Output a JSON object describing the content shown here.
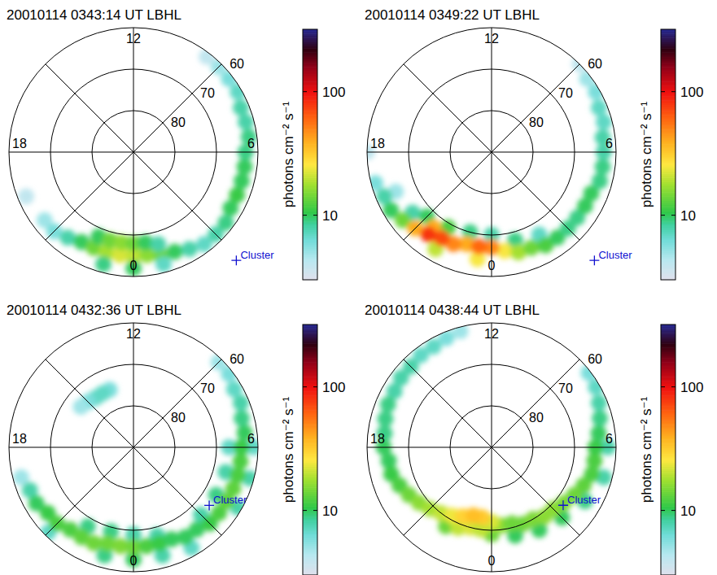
{
  "chart_data": [
    {
      "type": "polar_heatmap",
      "title": "20010114 0343:14 UT LBHL",
      "xlim": [
        0,
        24
      ],
      "xticks": [
        0,
        6,
        12,
        18
      ],
      "ylim": [
        90,
        60
      ],
      "yticks": [
        80,
        70,
        60
      ],
      "grid": true,
      "color_range": [
        3,
        320
      ],
      "color_ticks": [
        10,
        100
      ],
      "color_label": "photons cm⁻² s⁻¹",
      "log": true,
      "annotations": [
        {
          "text": "Cluster",
          "x": 2.9,
          "y": 54
        }
      ],
      "cells": [
        [
          19.5,
          62,
          4
        ],
        [
          20.5,
          63,
          5
        ],
        [
          21,
          63,
          6
        ],
        [
          21.5,
          64,
          8
        ],
        [
          22,
          65,
          10
        ],
        [
          22.5,
          65,
          14
        ],
        [
          23,
          65,
          18
        ],
        [
          23.5,
          65,
          22
        ],
        [
          0,
          65,
          20
        ],
        [
          0.5,
          65,
          16
        ],
        [
          1,
          64,
          14
        ],
        [
          1.5,
          64,
          10
        ],
        [
          2,
          63,
          8
        ],
        [
          22.5,
          68,
          10
        ],
        [
          23,
          68,
          14
        ],
        [
          23.5,
          68,
          16
        ],
        [
          0,
          68,
          14
        ],
        [
          0.5,
          68,
          10
        ],
        [
          1,
          67,
          8
        ],
        [
          23,
          62,
          9
        ],
        [
          0,
          62,
          10
        ],
        [
          1,
          62,
          7
        ],
        [
          2.5,
          62,
          7
        ],
        [
          3,
          62,
          8
        ],
        [
          3.5,
          62,
          9
        ],
        [
          4,
          63,
          10
        ],
        [
          4.5,
          63,
          11
        ],
        [
          5,
          63,
          10
        ],
        [
          5.5,
          63,
          10
        ],
        [
          6,
          63,
          9
        ],
        [
          6.5,
          62,
          9
        ],
        [
          7,
          62,
          8
        ],
        [
          7.5,
          62,
          8
        ],
        [
          8,
          61,
          7
        ],
        [
          8.5,
          61,
          6
        ],
        [
          9,
          61,
          5
        ],
        [
          9.5,
          61,
          4
        ]
      ]
    },
    {
      "type": "polar_heatmap",
      "title": "20010114 0349:22 UT LBHL",
      "xlim": [
        0,
        24
      ],
      "xticks": [
        0,
        6,
        12,
        18
      ],
      "ylim": [
        90,
        60
      ],
      "yticks": [
        80,
        70,
        60
      ],
      "grid": true,
      "color_range": [
        3,
        320
      ],
      "color_ticks": [
        10,
        100
      ],
      "color_label": "photons cm⁻² s⁻¹",
      "log": true,
      "annotations": [
        {
          "text": "Cluster",
          "x": 2.9,
          "y": 54
        }
      ],
      "cells": [
        [
          18,
          60,
          4
        ],
        [
          19.5,
          65,
          5
        ],
        [
          19,
          61,
          6
        ],
        [
          19.5,
          62,
          8
        ],
        [
          20,
          62,
          10
        ],
        [
          20.5,
          66,
          8
        ],
        [
          21,
          68,
          10
        ],
        [
          22,
          69,
          12
        ],
        [
          23,
          70,
          9
        ],
        [
          0,
          70,
          8
        ],
        [
          1,
          68,
          9
        ],
        [
          2,
          67,
          7
        ],
        [
          20.5,
          63,
          14
        ],
        [
          22,
          63,
          20
        ],
        [
          23.5,
          64,
          25
        ],
        [
          0.5,
          66,
          25
        ],
        [
          1,
          65,
          18
        ],
        [
          1.5,
          65,
          14
        ],
        [
          2,
          64,
          12
        ],
        [
          2.5,
          64,
          10
        ],
        [
          3,
          64,
          9
        ],
        [
          3.5,
          64,
          9
        ],
        [
          4,
          64,
          10
        ],
        [
          4.5,
          64,
          10
        ],
        [
          5,
          63,
          9
        ],
        [
          5.5,
          63,
          9
        ],
        [
          6,
          63,
          8
        ],
        [
          6.5,
          63,
          8
        ],
        [
          7,
          62,
          7
        ],
        [
          7.5,
          62,
          7
        ],
        [
          8,
          61,
          6
        ],
        [
          8.5,
          61,
          5
        ],
        [
          9,
          60,
          4
        ],
        [
          21,
          64,
          40
        ],
        [
          21.5,
          67,
          40
        ],
        [
          23,
          67,
          40
        ],
        [
          22.5,
          66,
          50
        ],
        [
          0,
          67,
          50
        ],
        [
          23.5,
          67,
          60
        ],
        [
          22,
          66,
          70
        ],
        [
          21.5,
          65,
          80
        ]
      ]
    },
    {
      "type": "polar_heatmap",
      "title": "20010114 0432:36 UT LBHL",
      "xlim": [
        0,
        24
      ],
      "xticks": [
        0,
        6,
        12,
        18
      ],
      "ylim": [
        90,
        60
      ],
      "yticks": [
        80,
        70,
        60
      ],
      "grid": true,
      "color_range": [
        3,
        320
      ],
      "color_ticks": [
        10,
        100
      ],
      "color_label": "photons cm⁻² s⁻¹",
      "log": true,
      "annotations": [
        {
          "text": "Cluster",
          "x": 3.5,
          "y": 67
        }
      ],
      "cells": [
        [
          13.5,
          75,
          6
        ],
        [
          14,
          75,
          7
        ],
        [
          14.5,
          75,
          7
        ],
        [
          15,
          74.5,
          6
        ],
        [
          15.5,
          74,
          5
        ],
        [
          22,
          68,
          9
        ],
        [
          23,
          69,
          9
        ],
        [
          0,
          69,
          8
        ],
        [
          1,
          68,
          8
        ],
        [
          3,
          67,
          8
        ],
        [
          4,
          67,
          9
        ],
        [
          5,
          67,
          8
        ],
        [
          6,
          67,
          7
        ],
        [
          23,
          63,
          9
        ],
        [
          0,
          63,
          10
        ],
        [
          1,
          63,
          8
        ],
        [
          4,
          61,
          8
        ],
        [
          5,
          61,
          8
        ],
        [
          6,
          61,
          7
        ],
        [
          21,
          61,
          7
        ],
        [
          2,
          62,
          7
        ],
        [
          19,
          62,
          5
        ],
        [
          19.5,
          63,
          8
        ],
        [
          20,
          63,
          10
        ],
        [
          20.5,
          64,
          11
        ],
        [
          21,
          64,
          12
        ],
        [
          21.5,
          65,
          12
        ],
        [
          22,
          65,
          13
        ],
        [
          22.5,
          65,
          14
        ],
        [
          23,
          66,
          14
        ],
        [
          23.5,
          66,
          15
        ],
        [
          0,
          66,
          14
        ],
        [
          0.5,
          66,
          12
        ],
        [
          1,
          66,
          11
        ],
        [
          1.5,
          66,
          10
        ],
        [
          2,
          65,
          10
        ],
        [
          2.5,
          65,
          10
        ],
        [
          3,
          64,
          11
        ],
        [
          3.5,
          64,
          12
        ],
        [
          4,
          64,
          13
        ],
        [
          4.5,
          64,
          13
        ],
        [
          5,
          64,
          12
        ],
        [
          5.5,
          64,
          12
        ],
        [
          6,
          64,
          11
        ],
        [
          6.5,
          63,
          10
        ],
        [
          7,
          63,
          9
        ],
        [
          7.5,
          62,
          8
        ],
        [
          8,
          62,
          7
        ],
        [
          8.5,
          61,
          6
        ],
        [
          9,
          61,
          5
        ]
      ]
    },
    {
      "type": "polar_heatmap",
      "title": "20010114 0438:44 UT LBHL",
      "xlim": [
        0,
        24
      ],
      "xticks": [
        0,
        6,
        12,
        18
      ],
      "ylim": [
        90,
        60
      ],
      "yticks": [
        80,
        70,
        60
      ],
      "grid": true,
      "color_range": [
        3,
        320
      ],
      "color_ticks": [
        10,
        100
      ],
      "color_label": "photons cm⁻² s⁻¹",
      "log": true,
      "annotations": [
        {
          "text": "Cluster",
          "x": 3.4,
          "y": 67.8
        }
      ],
      "cells": [
        [
          13,
          61,
          5
        ],
        [
          13.5,
          61.5,
          6
        ],
        [
          14,
          62,
          7
        ],
        [
          14.5,
          62,
          7
        ],
        [
          15,
          62.5,
          8
        ],
        [
          15.5,
          62.5,
          8
        ],
        [
          16,
          63,
          8
        ],
        [
          16.5,
          63,
          9
        ],
        [
          17,
          63.5,
          9
        ],
        [
          17.5,
          64,
          9
        ],
        [
          18,
          64,
          10
        ],
        [
          18.5,
          65,
          10
        ],
        [
          19,
          65,
          11
        ],
        [
          19.5,
          66,
          12
        ],
        [
          22,
          68,
          14
        ],
        [
          0,
          69,
          14
        ],
        [
          1,
          68,
          10
        ],
        [
          2,
          67,
          10
        ],
        [
          3,
          66,
          10
        ],
        [
          5,
          62,
          8
        ],
        [
          6,
          62,
          8
        ],
        [
          4,
          64,
          9
        ],
        [
          4.5,
          66,
          13
        ],
        [
          5,
          65,
          12
        ],
        [
          5.5,
          65,
          12
        ],
        [
          6,
          65,
          11
        ],
        [
          6.5,
          64,
          10
        ],
        [
          7,
          63,
          9
        ],
        [
          7.5,
          62,
          8
        ],
        [
          8,
          61,
          7
        ],
        [
          8.5,
          60.5,
          6
        ],
        [
          20,
          67,
          14
        ],
        [
          20.5,
          68,
          16
        ],
        [
          21,
          69,
          18
        ],
        [
          21.5,
          70,
          20
        ],
        [
          0.5,
          71,
          16
        ],
        [
          1,
          71,
          14
        ],
        [
          1.5,
          70,
          14
        ],
        [
          2,
          70,
          15
        ],
        [
          2.5,
          69,
          16
        ],
        [
          3,
          69,
          16
        ],
        [
          3.5,
          68,
          15
        ],
        [
          4,
          67,
          14
        ],
        [
          22.5,
          69,
          20
        ],
        [
          23,
          70,
          22
        ],
        [
          23.5,
          70,
          20
        ],
        [
          0,
          72,
          22
        ],
        [
          22,
          71,
          24
        ],
        [
          22.5,
          72,
          30
        ],
        [
          23.5,
          73,
          32
        ],
        [
          23,
          73,
          35
        ]
      ]
    }
  ]
}
